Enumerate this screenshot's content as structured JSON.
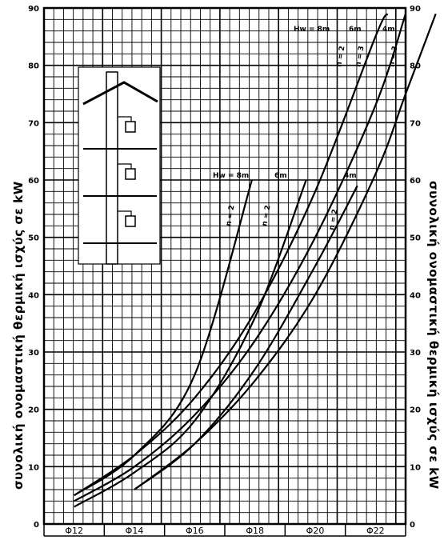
{
  "chart_data": {
    "type": "line",
    "ylabel": "συνολική ονομαστική θερμική ισχύς σε kW",
    "ylim": [
      0,
      90
    ],
    "y_ticks": [
      "0",
      "10",
      "20",
      "30",
      "40",
      "50",
      "60",
      "70",
      "80",
      "90"
    ],
    "grid": true,
    "x_categories": [
      "Φ12",
      "Φ14",
      "Φ16",
      "Φ18",
      "Φ20",
      "Φ22"
    ],
    "series": [
      {
        "name": "4m",
        "x": [
          1.0,
          2.0,
          3.0,
          4.0,
          5.0,
          5.5,
          6.0
        ],
        "values": [
          6,
          14,
          25,
          40,
          61,
          75,
          89
        ]
      },
      {
        "name": "6m",
        "x": [
          0.0,
          1.0,
          2.0,
          3.0,
          4.0,
          5.0,
          5.5
        ],
        "values": [
          4,
          10,
          19,
          32,
          50,
          73,
          89
        ]
      },
      {
        "name": "8m",
        "x": [
          0.0,
          1.0,
          2.0,
          3.0,
          4.0,
          5.0,
          5.2
        ],
        "values": [
          5,
          12,
          22,
          37,
          58,
          85,
          89
        ]
      }
    ],
    "lower_series": [
      {
        "name": "4m",
        "x": [
          1.0,
          2.0,
          3.0,
          4.0,
          4.7
        ],
        "values": [
          6,
          14,
          27,
          45,
          59
        ]
      },
      {
        "name": "6m",
        "x": [
          0.0,
          1.0,
          2.0,
          3.0,
          3.85
        ],
        "values": [
          3,
          9,
          18,
          36,
          60
        ]
      },
      {
        "name": "8m",
        "x": [
          0.0,
          1.0,
          2.0,
          2.95
        ],
        "values": [
          5,
          12,
          26,
          60
        ]
      }
    ],
    "labels": {
      "top_header": "Hw = 8m",
      "top_6m": "6m",
      "top_4m": "4m",
      "mid_header": "Hw = 8m",
      "mid_6m": "6m",
      "mid_4m": "4m",
      "n2": "n = 2",
      "n3": "n = 3"
    }
  }
}
